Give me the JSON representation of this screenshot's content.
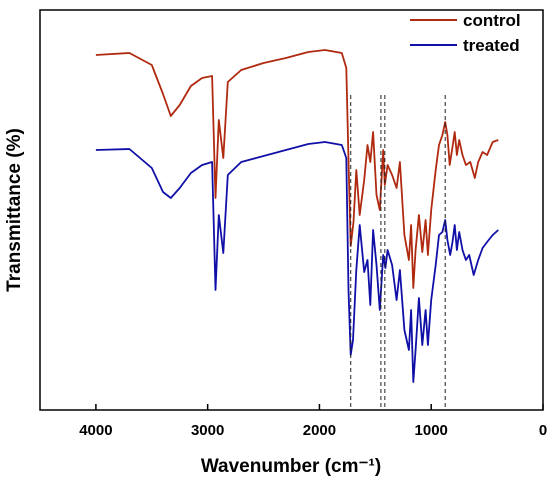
{
  "chart_data": {
    "type": "line",
    "xlabel": "Wavenumber (cm⁻¹)",
    "ylabel": "Transmittance (%)",
    "xlim": [
      4500,
      0
    ],
    "x_reversed": true,
    "xticks": [
      4000,
      3000,
      2000,
      1000,
      0
    ],
    "y_ticks_shown": false,
    "legend_position": "top-right",
    "grid": false,
    "reference_lines": [
      1720,
      1450,
      1415,
      875
    ],
    "series": [
      {
        "name": "control",
        "color": "#B02A10",
        "points": [
          [
            4000,
            45
          ],
          [
            3700,
            43
          ],
          [
            3500,
            55
          ],
          [
            3400,
            84
          ],
          [
            3330,
            106
          ],
          [
            3250,
            95
          ],
          [
            3150,
            76
          ],
          [
            3050,
            68
          ],
          [
            2960,
            66
          ],
          [
            2930,
            188
          ],
          [
            2900,
            110
          ],
          [
            2860,
            148
          ],
          [
            2820,
            72
          ],
          [
            2700,
            60
          ],
          [
            2500,
            53
          ],
          [
            2300,
            48
          ],
          [
            2100,
            42
          ],
          [
            1950,
            40
          ],
          [
            1800,
            43
          ],
          [
            1760,
            58
          ],
          [
            1740,
            150
          ],
          [
            1720,
            236
          ],
          [
            1695,
            212
          ],
          [
            1670,
            160
          ],
          [
            1640,
            205
          ],
          [
            1600,
            170
          ],
          [
            1570,
            135
          ],
          [
            1545,
            152
          ],
          [
            1520,
            122
          ],
          [
            1490,
            185
          ],
          [
            1460,
            200
          ],
          [
            1430,
            140
          ],
          [
            1415,
            175
          ],
          [
            1390,
            155
          ],
          [
            1350,
            165
          ],
          [
            1310,
            178
          ],
          [
            1280,
            152
          ],
          [
            1240,
            225
          ],
          [
            1200,
            250
          ],
          [
            1180,
            215
          ],
          [
            1160,
            278
          ],
          [
            1140,
            240
          ],
          [
            1110,
            205
          ],
          [
            1080,
            242
          ],
          [
            1050,
            210
          ],
          [
            1030,
            245
          ],
          [
            1000,
            200
          ],
          [
            960,
            160
          ],
          [
            930,
            135
          ],
          [
            900,
            125
          ],
          [
            875,
            112
          ],
          [
            855,
            125
          ],
          [
            835,
            155
          ],
          [
            810,
            137
          ],
          [
            790,
            122
          ],
          [
            770,
            145
          ],
          [
            750,
            130
          ],
          [
            720,
            145
          ],
          [
            690,
            155
          ],
          [
            650,
            152
          ],
          [
            610,
            168
          ],
          [
            580,
            152
          ],
          [
            540,
            142
          ],
          [
            500,
            145
          ],
          [
            450,
            132
          ],
          [
            400,
            130
          ]
        ]
      },
      {
        "name": "treated",
        "color": "#1010A8",
        "points": [
          [
            4000,
            140
          ],
          [
            3700,
            139
          ],
          [
            3500,
            158
          ],
          [
            3400,
            182
          ],
          [
            3330,
            188
          ],
          [
            3250,
            178
          ],
          [
            3150,
            163
          ],
          [
            3050,
            155
          ],
          [
            2960,
            152
          ],
          [
            2930,
            280
          ],
          [
            2900,
            205
          ],
          [
            2860,
            243
          ],
          [
            2820,
            165
          ],
          [
            2700,
            152
          ],
          [
            2500,
            146
          ],
          [
            2300,
            140
          ],
          [
            2100,
            134
          ],
          [
            1950,
            132
          ],
          [
            1800,
            135
          ],
          [
            1760,
            148
          ],
          [
            1740,
            280
          ],
          [
            1720,
            345
          ],
          [
            1700,
            330
          ],
          [
            1670,
            260
          ],
          [
            1640,
            215
          ],
          [
            1600,
            262
          ],
          [
            1570,
            250
          ],
          [
            1545,
            295
          ],
          [
            1520,
            220
          ],
          [
            1490,
            255
          ],
          [
            1460,
            300
          ],
          [
            1430,
            245
          ],
          [
            1410,
            258
          ],
          [
            1390,
            240
          ],
          [
            1350,
            255
          ],
          [
            1310,
            290
          ],
          [
            1280,
            260
          ],
          [
            1240,
            320
          ],
          [
            1200,
            340
          ],
          [
            1180,
            300
          ],
          [
            1160,
            372
          ],
          [
            1140,
            340
          ],
          [
            1110,
            288
          ],
          [
            1080,
            335
          ],
          [
            1050,
            300
          ],
          [
            1030,
            335
          ],
          [
            1000,
            290
          ],
          [
            960,
            255
          ],
          [
            930,
            225
          ],
          [
            900,
            222
          ],
          [
            875,
            210
          ],
          [
            855,
            230
          ],
          [
            830,
            245
          ],
          [
            810,
            232
          ],
          [
            790,
            215
          ],
          [
            770,
            240
          ],
          [
            750,
            222
          ],
          [
            720,
            240
          ],
          [
            690,
            250
          ],
          [
            660,
            245
          ],
          [
            620,
            265
          ],
          [
            580,
            250
          ],
          [
            540,
            238
          ],
          [
            500,
            232
          ],
          [
            450,
            225
          ],
          [
            400,
            220
          ]
        ]
      }
    ]
  }
}
